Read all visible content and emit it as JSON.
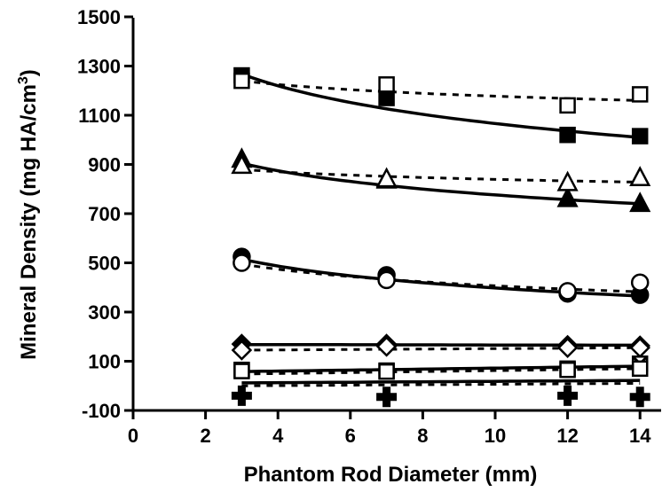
{
  "chart_data": {
    "type": "scatter",
    "title": "",
    "xlabel": "Phantom Rod Diameter (mm)",
    "ylabel_main": "Mineral Density (mg HA/cm",
    "ylabel_sup": "3",
    "ylabel_close": ")",
    "xlim": [
      0,
      14.5
    ],
    "ylim": [
      -100,
      1500
    ],
    "xticks": [
      "0",
      "2",
      "4",
      "6",
      "8",
      "10",
      "12",
      "14"
    ],
    "yticks": [
      "-100",
      "100",
      "300",
      "500",
      "700",
      "900",
      "1100",
      "1300",
      "1500"
    ],
    "grid": false,
    "x": [
      3,
      7,
      12,
      14
    ],
    "series": [
      {
        "marker": "square",
        "filled": true,
        "line": "solid",
        "values": [
          1262,
          1170,
          1020,
          1015
        ]
      },
      {
        "marker": "square",
        "filled": false,
        "line": "dashed",
        "values": [
          1240,
          1225,
          1140,
          1185
        ]
      },
      {
        "marker": "triangle",
        "filled": true,
        "line": "solid",
        "values": [
          920,
          835,
          760,
          740
        ]
      },
      {
        "marker": "triangle",
        "filled": false,
        "line": "dashed",
        "values": [
          895,
          840,
          825,
          845
        ]
      },
      {
        "marker": "circle",
        "filled": true,
        "line": "solid",
        "values": [
          525,
          450,
          375,
          370
        ]
      },
      {
        "marker": "circle",
        "filled": false,
        "line": "dashed",
        "values": [
          500,
          430,
          385,
          420
        ]
      },
      {
        "marker": "diamond",
        "filled": true,
        "line": "solid",
        "values": [
          170,
          170,
          165,
          163
        ]
      },
      {
        "marker": "diamond",
        "filled": false,
        "line": "dashed",
        "values": [
          145,
          160,
          155,
          155
        ]
      },
      {
        "marker": "x-square",
        "filled": false,
        "line": "solid",
        "values": [
          65,
          62,
          70,
          90
        ]
      },
      {
        "marker": "square",
        "filled": false,
        "line": "dashed",
        "values": [
          60,
          58,
          65,
          70
        ]
      },
      {
        "marker": "plus",
        "filled": true,
        "line": "solid",
        "values": [
          -40,
          -45,
          -40,
          -45
        ]
      }
    ],
    "trendlines": [
      {
        "style": "solid",
        "y_at_x3": 1268,
        "y_at_x14": 1010,
        "curved": true
      },
      {
        "style": "dashed",
        "y_at_x3": 1240,
        "y_at_x14": 1160,
        "curved": true
      },
      {
        "style": "solid",
        "y_at_x3": 905,
        "y_at_x14": 740,
        "curved": true
      },
      {
        "style": "dashed",
        "y_at_x3": 880,
        "y_at_x14": 828,
        "curved": true
      },
      {
        "style": "solid",
        "y_at_x3": 515,
        "y_at_x14": 365,
        "curved": true
      },
      {
        "style": "dashed",
        "y_at_x3": 495,
        "y_at_x14": 382,
        "curved": true
      },
      {
        "style": "solid",
        "y_at_x3": 168,
        "y_at_x14": 165,
        "curved": false
      },
      {
        "style": "dashed",
        "y_at_x3": 145,
        "y_at_x14": 155,
        "curved": false
      },
      {
        "style": "solid",
        "y_at_x3": 58,
        "y_at_x14": 80,
        "curved": false
      },
      {
        "style": "dashed",
        "y_at_x3": 48,
        "y_at_x14": 70,
        "curved": false
      },
      {
        "style": "solid",
        "y_at_x3": 12,
        "y_at_x14": 22,
        "curved": false
      },
      {
        "style": "dashed",
        "y_at_x3": 0,
        "y_at_x14": 10,
        "curved": false
      }
    ]
  }
}
